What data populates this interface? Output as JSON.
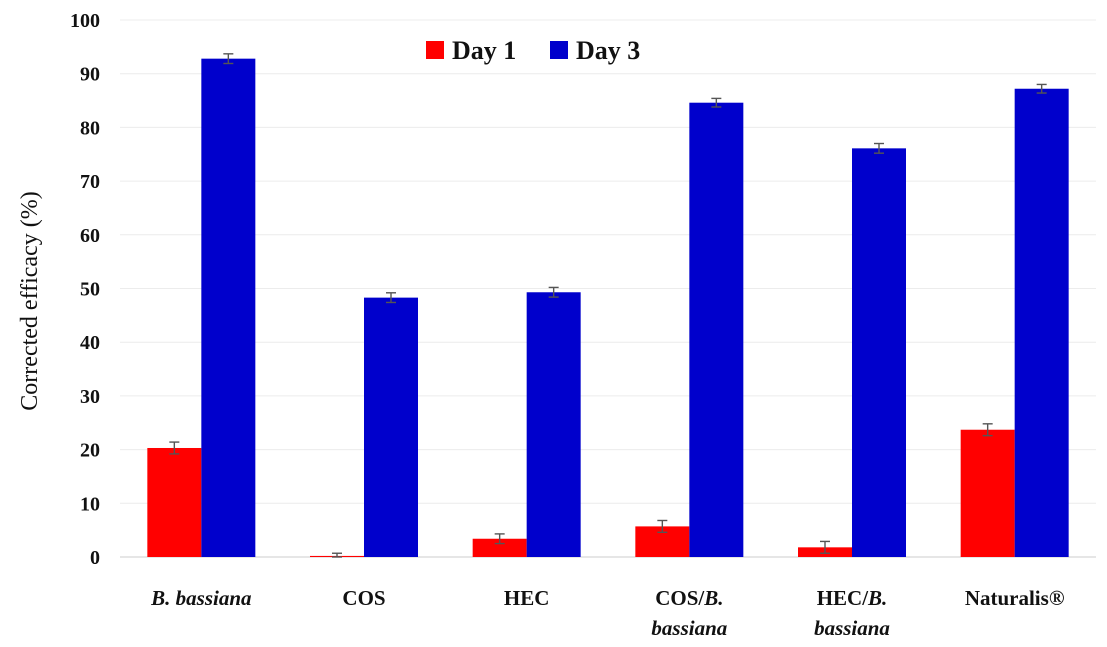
{
  "chart_data": {
    "type": "bar",
    "title": "",
    "xlabel": "",
    "ylabel": "Corrected  efficacy  (%)",
    "ylim": [
      0,
      100
    ],
    "yticks": [
      0,
      10,
      20,
      30,
      40,
      50,
      60,
      70,
      80,
      90,
      100
    ],
    "grid": true,
    "legend_position": "top-center",
    "categories": [
      {
        "parts": [
          {
            "text": "B. bassiana",
            "italic": true
          }
        ]
      },
      {
        "parts": [
          {
            "text": "COS",
            "italic": false
          }
        ]
      },
      {
        "parts": [
          {
            "text": "HEC",
            "italic": false
          }
        ]
      },
      {
        "parts": [
          {
            "text": "COS/",
            "italic": false
          },
          {
            "text": "B.",
            "italic": true
          },
          {
            "text": "bassiana",
            "italic": true,
            "newline": true
          }
        ]
      },
      {
        "parts": [
          {
            "text": "HEC/",
            "italic": false
          },
          {
            "text": "B.",
            "italic": true
          },
          {
            "text": "bassiana",
            "italic": true,
            "newline": true
          }
        ]
      },
      {
        "parts": [
          {
            "text": "Naturalis®",
            "italic": false
          }
        ]
      }
    ],
    "series": [
      {
        "name": "Day 1",
        "color": "#ff0000",
        "values": [
          20.3,
          0.2,
          3.4,
          5.7,
          1.8,
          23.7
        ],
        "errors": [
          1.1,
          0.5,
          0.9,
          1.1,
          1.1,
          1.1
        ]
      },
      {
        "name": "Day 3",
        "color": "#0000cc",
        "values": [
          92.8,
          48.3,
          49.3,
          84.6,
          76.1,
          87.2
        ],
        "errors": [
          0.9,
          0.9,
          0.9,
          0.8,
          0.9,
          0.8
        ]
      }
    ]
  }
}
